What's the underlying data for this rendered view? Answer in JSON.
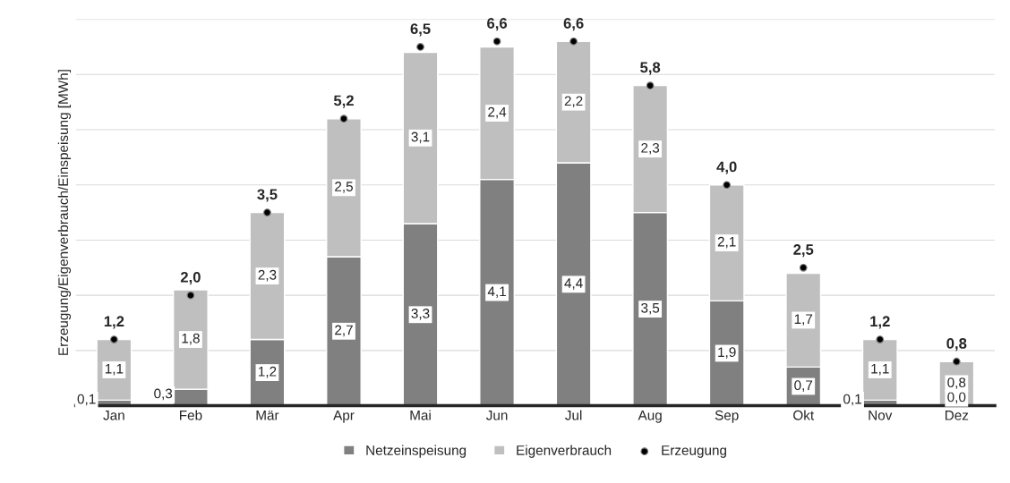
{
  "chart_data": {
    "type": "bar",
    "ylabel": "Erzeugung/Eigenverbrauch/Einspeisung [MWh]",
    "categories": [
      "Jan",
      "Feb",
      "Mär",
      "Apr",
      "Mai",
      "Jun",
      "Jul",
      "Aug",
      "Sep",
      "Okt",
      "Nov",
      "Dez"
    ],
    "stacked": true,
    "series": [
      {
        "name": "Netzeinspeisung",
        "color": "#808080",
        "values": [
          0.1,
          0.3,
          1.2,
          2.7,
          3.3,
          4.1,
          4.4,
          3.5,
          1.9,
          0.7,
          0.1,
          0.0
        ],
        "value_labels": [
          "0,1",
          "0,3",
          "1,2",
          "2,7",
          "3,3",
          "4,1",
          "4,4",
          "3,5",
          "1,9",
          "0,7",
          "0,1",
          "0,0"
        ]
      },
      {
        "name": "Eigenverbrauch",
        "color": "#bfbfbf",
        "values": [
          1.1,
          1.8,
          2.3,
          2.5,
          3.1,
          2.4,
          2.2,
          2.3,
          2.1,
          1.7,
          1.1,
          0.8
        ],
        "value_labels": [
          "1,1",
          "1,8",
          "2,3",
          "2,5",
          "3,1",
          "2,4",
          "2,2",
          "2,3",
          "2,1",
          "1,7",
          "1,1",
          "0,8"
        ]
      },
      {
        "name": "Erzeugung",
        "type": "scatter",
        "color": "#000000",
        "marker": "circle",
        "values": [
          1.2,
          2.0,
          3.5,
          5.2,
          6.5,
          6.6,
          6.6,
          5.8,
          4.0,
          2.5,
          1.2,
          0.8
        ],
        "value_labels": [
          "1,2",
          "2,0",
          "3,5",
          "5,2",
          "6,5",
          "6,6",
          "6,6",
          "5,8",
          "4,0",
          "2,5",
          "1,2",
          "0,8"
        ]
      }
    ],
    "ylim": [
      0,
      7
    ],
    "yticks": [
      {
        "value": 0,
        "label": null
      },
      {
        "value": 1,
        "label": null
      },
      {
        "value": 2,
        "label": null
      },
      {
        "value": 3,
        "label": null
      },
      {
        "value": 4,
        "label": null
      },
      {
        "value": 5,
        "label": null
      },
      {
        "value": 6,
        "label": null
      },
      {
        "value": 7,
        "label": null
      }
    ],
    "tick_labels": "x",
    "grid": "y",
    "legend": "bottom"
  }
}
